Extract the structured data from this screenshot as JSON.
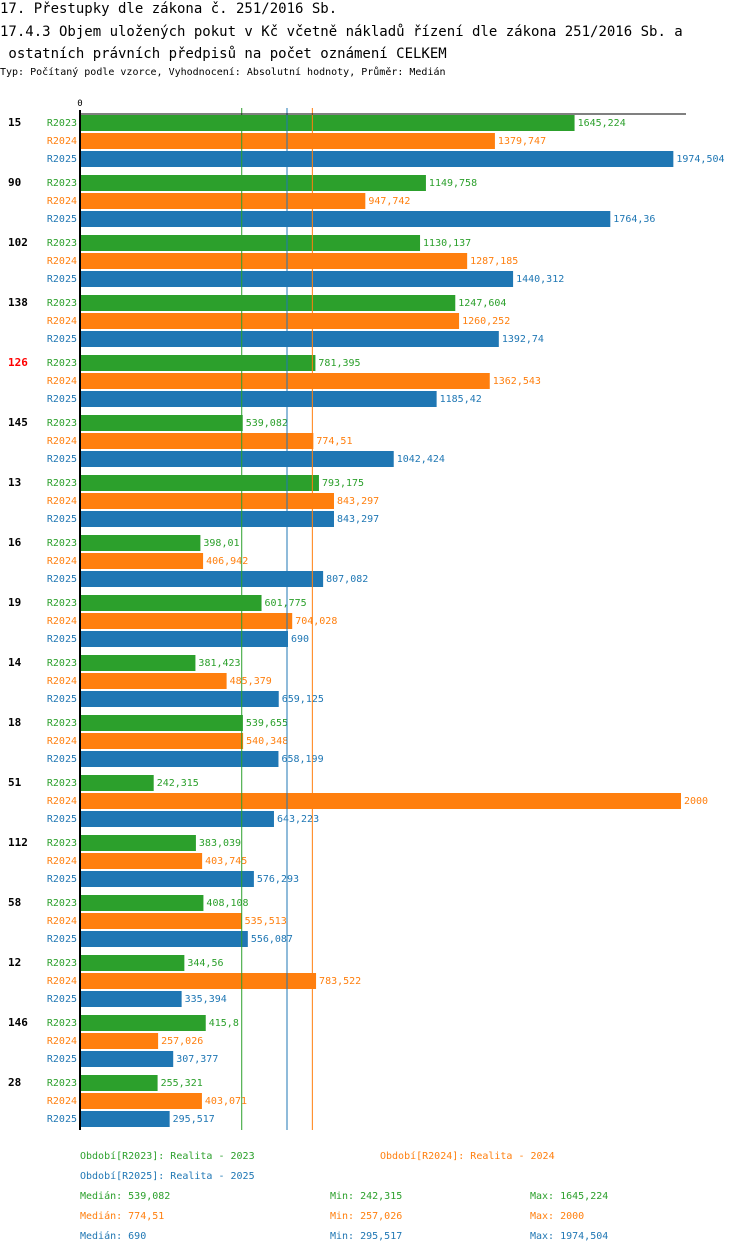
{
  "header": {
    "title": "17. Přestupky dle zákona č. 251/2016 Sb.",
    "subtitle": "17.4.3 Objem uložených pokut v Kč včetně nákladů řízení dle zákona 251/2016 Sb. a\n ostatních právních předpisů na počet oznámení CELKEM",
    "info": "Typ: Počítaný podle vzorce, Vyhodnocení: Absolutní hodnoty, Průměr: Medián"
  },
  "colors": {
    "R2023": "#2ca02c",
    "R2024": "#ff7f0e",
    "R2025": "#1f77b4",
    "highlight": "#ff0000",
    "axis": "#000000"
  },
  "chart_data": {
    "type": "bar",
    "orientation": "horizontal",
    "title": "17.4.3 Objem uložených pokut v Kč včetně nákladů řízení dle zákona 251/2016 Sb. a ostatních právních předpisů na počet oznámení CELKEM",
    "xlabel": "",
    "ylabel": "",
    "xlim": [
      0,
      2000
    ],
    "axis_zero_label": "0",
    "grid": false,
    "highlighted_category": "126",
    "categories": [
      "15",
      "90",
      "102",
      "138",
      "126",
      "145",
      "13",
      "16",
      "19",
      "14",
      "18",
      "51",
      "112",
      "58",
      "12",
      "146",
      "28"
    ],
    "series": [
      {
        "name": "R2023",
        "values": [
          1645.224,
          1149.758,
          1130.137,
          1247.604,
          781.395,
          539.082,
          793.175,
          398.01,
          601.775,
          381.423,
          539.655,
          242.315,
          383.039,
          408.108,
          344.56,
          415.8,
          255.321
        ],
        "labels": [
          "1645,224",
          "1149,758",
          "1130,137",
          "1247,604",
          "781,395",
          "539,082",
          "793,175",
          "398,01",
          "601,775",
          "381,423",
          "539,655",
          "242,315",
          "383,039",
          "408,108",
          "344,56",
          "415,8",
          "255,321"
        ]
      },
      {
        "name": "R2024",
        "values": [
          1379.747,
          947.742,
          1287.185,
          1260.252,
          1362.543,
          774.51,
          843.297,
          406.942,
          704.028,
          485.379,
          540.348,
          2000,
          403.745,
          535.513,
          783.522,
          257.026,
          403.071
        ],
        "labels": [
          "1379,747",
          "947,742",
          "1287,185",
          "1260,252",
          "1362,543",
          "774,51",
          "843,297",
          "406,942",
          "704,028",
          "485,379",
          "540,348",
          "2000",
          "403,745",
          "535,513",
          "783,522",
          "257,026",
          "403,071"
        ]
      },
      {
        "name": "R2025",
        "values": [
          1974.504,
          1764.36,
          1440.312,
          1392.74,
          1185.42,
          1042.424,
          843.297,
          807.082,
          690,
          659.125,
          658.199,
          643.223,
          576.293,
          556.087,
          335.394,
          307.377,
          295.517
        ],
        "labels": [
          "1974,504",
          "1764,36",
          "1440,312",
          "1392,74",
          "1185,42",
          "1042,424",
          "843,297",
          "807,082",
          "690",
          "659,125",
          "658,199",
          "643,223",
          "576,293",
          "556,087",
          "335,394",
          "307,377",
          "295,517"
        ]
      }
    ],
    "medians": {
      "R2023": 539.082,
      "R2024": 774.51,
      "R2025": 690
    }
  },
  "legend": {
    "periods": [
      {
        "series": "R2023",
        "text": "Období[R2023]: Realita - 2023"
      },
      {
        "series": "R2024",
        "text": "Období[R2024]: Realita - 2024"
      },
      {
        "series": "R2025",
        "text": "Období[R2025]: Realita - 2025"
      }
    ],
    "stats": [
      {
        "series": "R2023",
        "median": "Medián: 539,082",
        "min": "Min: 242,315",
        "max": "Max: 1645,224"
      },
      {
        "series": "R2024",
        "median": "Medián: 774,51",
        "min": "Min: 257,026",
        "max": "Max: 2000"
      },
      {
        "series": "R2025",
        "median": "Medián: 690",
        "min": "Min: 295,517",
        "max": "Max: 1974,504"
      }
    ]
  }
}
